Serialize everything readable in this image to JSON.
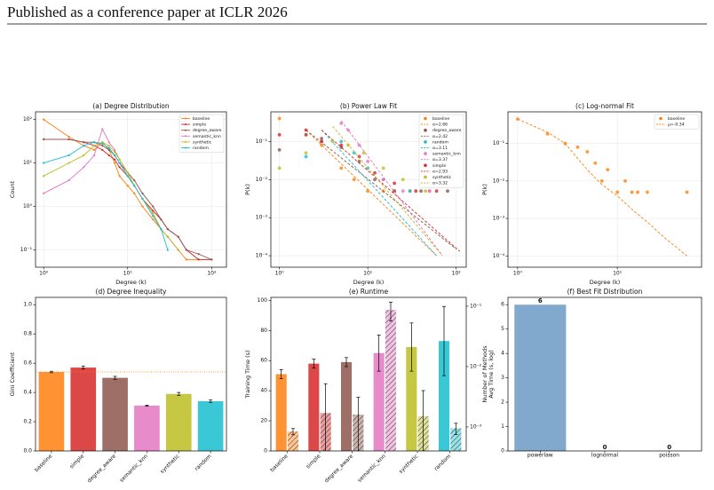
{
  "header": {
    "title": "Published as a conference paper at ICLR 2026"
  },
  "chart_data": [
    {
      "type": "line",
      "title": "(a) Degree Distribution",
      "xlabel": "Degree (k)",
      "ylabel": "Count",
      "xscale": "log",
      "yscale": "log",
      "xlim": [
        0.8,
        150
      ],
      "ylim": [
        0.04,
        150
      ],
      "xticks": [
        {
          "value": 1,
          "label": "10⁰"
        },
        {
          "value": 10,
          "label": "10¹"
        },
        {
          "value": 100,
          "label": "10²"
        }
      ],
      "yticks": [
        {
          "value": 0.1,
          "label": "10⁻¹"
        },
        {
          "value": 1,
          "label": "10⁰"
        },
        {
          "value": 10,
          "label": "10¹"
        },
        {
          "value": 100,
          "label": "10²"
        }
      ],
      "grid": true,
      "legend": "upper right",
      "series": [
        {
          "name": "baseline",
          "color": "#ff7f0e",
          "x": [
            1,
            2,
            3,
            4,
            5,
            6,
            7,
            8,
            10,
            12,
            15,
            20,
            25,
            30,
            40,
            50,
            70
          ],
          "values": [
            100,
            40,
            25,
            20,
            30,
            20,
            10,
            5,
            3,
            2,
            1,
            0.5,
            0.3,
            0.2,
            0.1,
            0.06,
            0.06
          ]
        },
        {
          "name": "simple",
          "color": "#d62728",
          "x": [
            1,
            2,
            3,
            4,
            5,
            6,
            7,
            8,
            10,
            12,
            15,
            20,
            25,
            30,
            40,
            50,
            70,
            100
          ],
          "values": [
            35,
            35,
            30,
            25,
            20,
            15,
            12,
            8,
            5,
            3,
            1.5,
            0.8,
            0.5,
            0.3,
            0.2,
            0.1,
            0.06,
            0.06
          ]
        },
        {
          "name": "degree_aware",
          "color": "#8c564b",
          "x": [
            1,
            2,
            3,
            4,
            5,
            6,
            7,
            8,
            10,
            12,
            15,
            20,
            25,
            30,
            40,
            50,
            70,
            100
          ],
          "values": [
            35,
            35,
            30,
            30,
            25,
            20,
            15,
            10,
            6,
            4,
            2,
            1,
            0.5,
            0.3,
            0.2,
            0.1,
            0.08,
            0.06
          ]
        },
        {
          "name": "semantic_knn",
          "color": "#e377c2",
          "x": [
            1,
            2,
            3,
            4,
            5,
            6,
            7,
            8,
            10,
            12,
            15,
            20,
            25,
            30,
            40
          ],
          "values": [
            2,
            4,
            8,
            15,
            60,
            30,
            20,
            12,
            6,
            3,
            1.5,
            0.7,
            0.3,
            0.2,
            0.1
          ]
        },
        {
          "name": "synthetic",
          "color": "#bcbd22",
          "x": [
            1,
            2,
            3,
            4,
            5,
            6,
            7,
            8,
            10,
            12,
            15,
            20,
            25,
            30,
            40
          ],
          "values": [
            5,
            10,
            15,
            25,
            30,
            25,
            18,
            12,
            6,
            3,
            1.5,
            0.7,
            0.3,
            0.2,
            0.1
          ]
        },
        {
          "name": "random",
          "color": "#17becf",
          "x": [
            1,
            2,
            3,
            4,
            5,
            6,
            7,
            8,
            10,
            12,
            15,
            20,
            25,
            30
          ],
          "values": [
            10,
            15,
            25,
            30,
            28,
            22,
            15,
            10,
            5,
            3,
            1.5,
            0.6,
            0.3,
            0.1
          ]
        }
      ]
    },
    {
      "type": "scatter",
      "title": "(b) Power Law Fit",
      "xlabel": "Degree (k)",
      "ylabel": "P(k)",
      "xscale": "log",
      "yscale": "log",
      "xlim": [
        0.8,
        130
      ],
      "ylim": [
        5e-05,
        0.6
      ],
      "xticks": [
        {
          "value": 1,
          "label": "10⁰"
        },
        {
          "value": 10,
          "label": "10¹"
        },
        {
          "value": 100,
          "label": "10²"
        }
      ],
      "yticks": [
        {
          "value": 0.0001,
          "label": "10⁻⁴"
        },
        {
          "value": 0.001,
          "label": "10⁻³"
        },
        {
          "value": 0.01,
          "label": "10⁻²"
        },
        {
          "value": 0.1,
          "label": "10⁻¹"
        }
      ],
      "grid": true,
      "legend": "upper right",
      "series": [
        {
          "name": "baseline",
          "color": "#ff7f0e",
          "style": "points",
          "x": [
            1,
            2,
            3,
            5,
            7,
            10,
            15,
            20,
            30,
            50
          ],
          "values": [
            0.4,
            0.15,
            0.08,
            0.02,
            0.01,
            0.005,
            0.005,
            0.005,
            0.005,
            0.005
          ]
        },
        {
          "name": "α=2.66",
          "color": "#ff7f0e",
          "style": "dashed",
          "x": [
            2,
            60
          ],
          "values": [
            0.2,
            0.0001
          ]
        },
        {
          "name": "degree_aware",
          "color": "#8c564b",
          "style": "points",
          "x": [
            1,
            2,
            3,
            5,
            8,
            12,
            20,
            40,
            80
          ],
          "values": [
            0.06,
            0.15,
            0.12,
            0.07,
            0.03,
            0.01,
            0.005,
            0.005,
            0.005
          ]
        },
        {
          "name": "α=2.42",
          "color": "#8c564b",
          "style": "dashed",
          "x": [
            2,
            100
          ],
          "values": [
            0.2,
            0.00015
          ]
        },
        {
          "name": "random",
          "color": "#17becf",
          "style": "points",
          "x": [
            2,
            3,
            5,
            7,
            10,
            15,
            30
          ],
          "values": [
            0.04,
            0.1,
            0.1,
            0.05,
            0.02,
            0.01,
            0.005
          ]
        },
        {
          "name": "α=3.11",
          "color": "#17becf",
          "style": "dashed",
          "x": [
            3,
            60
          ],
          "values": [
            0.2,
            0.0001
          ]
        },
        {
          "name": "semantic_knn",
          "color": "#e377c2",
          "style": "points",
          "x": [
            5,
            6,
            8,
            10,
            15,
            25,
            50
          ],
          "values": [
            0.3,
            0.2,
            0.08,
            0.03,
            0.01,
            0.005,
            0.005
          ]
        },
        {
          "name": "α=3.37",
          "color": "#e377c2",
          "style": "dashed",
          "x": [
            5,
            70
          ],
          "values": [
            0.35,
            0.0001
          ]
        },
        {
          "name": "simple",
          "color": "#d62728",
          "style": "points",
          "x": [
            1,
            2,
            3,
            5,
            8,
            12,
            20,
            35,
            60
          ],
          "values": [
            0.15,
            0.2,
            0.1,
            0.08,
            0.04,
            0.015,
            0.008,
            0.005,
            0.005
          ]
        },
        {
          "name": "α=2.93",
          "color": "#d62728",
          "style": "dashed",
          "x": [
            3,
            110
          ],
          "values": [
            0.2,
            0.00013
          ]
        },
        {
          "name": "synthetic",
          "color": "#bcbd22",
          "style": "points",
          "x": [
            1,
            2,
            4,
            6,
            9,
            15,
            25,
            45
          ],
          "values": [
            0.02,
            0.05,
            0.1,
            0.08,
            0.05,
            0.02,
            0.01,
            0.005
          ]
        },
        {
          "name": "α=3.32",
          "color": "#bcbd22",
          "style": "dashed",
          "x": [
            4,
            70
          ],
          "values": [
            0.25,
            0.0001
          ]
        }
      ]
    },
    {
      "type": "scatter",
      "title": "(c) Log-normal Fit",
      "xlabel": "Degree (k)",
      "ylabel": "P(k)",
      "xscale": "log",
      "yscale": "log",
      "xlim": [
        0.8,
        70
      ],
      "ylim": [
        5e-05,
        0.7
      ],
      "xticks": [
        {
          "value": 1,
          "label": "10⁰"
        },
        {
          "value": 10,
          "label": "10¹"
        }
      ],
      "yticks": [
        {
          "value": 0.0001,
          "label": "10⁻⁴"
        },
        {
          "value": 0.001,
          "label": "10⁻³"
        },
        {
          "value": 0.01,
          "label": "10⁻²"
        },
        {
          "value": 0.1,
          "label": "10⁻¹"
        }
      ],
      "grid": true,
      "legend": "upper right",
      "series": [
        {
          "name": "baseline",
          "color": "#ff7f0e",
          "style": "points",
          "x": [
            1,
            2,
            3,
            4,
            5,
            6,
            7,
            8,
            10,
            12,
            14,
            16,
            20,
            50
          ],
          "values": [
            0.45,
            0.18,
            0.1,
            0.08,
            0.06,
            0.03,
            0.01,
            0.02,
            0.005,
            0.01,
            0.005,
            0.005,
            0.005,
            0.005
          ]
        },
        {
          "name": "μ=-0.34",
          "color": "#ff7f0e",
          "style": "dashed",
          "x": [
            1,
            2,
            3,
            4,
            5,
            7,
            10,
            15,
            20,
            30,
            50
          ],
          "values": [
            0.45,
            0.2,
            0.1,
            0.04,
            0.02,
            0.008,
            0.004,
            0.0015,
            0.0008,
            0.0003,
            0.0001
          ]
        }
      ]
    },
    {
      "type": "bar",
      "title": "(d) Degree Inequality",
      "ylabel": "Gini Coefficient",
      "categories": [
        "baseline",
        "simple",
        "degree_aware",
        "semantic_knn",
        "synthetic",
        "random"
      ],
      "values": [
        0.54,
        0.57,
        0.5,
        0.31,
        0.39,
        0.34
      ],
      "errors": [
        0.005,
        0.01,
        0.01,
        0.003,
        0.01,
        0.008
      ],
      "colors": [
        "#ff7f0e",
        "#d62728",
        "#8c564b",
        "#e377c2",
        "#bcbd22",
        "#17becf"
      ],
      "reference_line": 0.54,
      "reference_color": "#ff7f0e",
      "ylim": [
        0,
        1.05
      ],
      "yticks": [
        {
          "value": 0,
          "label": "0.0"
        },
        0.2,
        0.4,
        0.6,
        0.8,
        {
          "value": 1,
          "label": "1.0"
        }
      ],
      "grid": false,
      "xtick_rotation": 45
    },
    {
      "type": "bar",
      "title": "(e) Runtime",
      "ylabel": "Training Time (s)",
      "y2label": "Avg Time (s, log)",
      "categories": [
        "baseline",
        "simple",
        "degree_aware",
        "semantic_knn",
        "synthetic",
        "random"
      ],
      "colors": [
        "#ff7f0e",
        "#d62728",
        "#8c564b",
        "#e377c2",
        "#bcbd22",
        "#17becf"
      ],
      "series": [
        {
          "values": [
            51,
            58,
            59,
            65,
            69,
            73
          ],
          "errors": [
            3,
            3,
            3,
            12,
            16,
            23
          ]
        },
        {
          "axis": "y2",
          "hatch": true,
          "values": [
            0.00084,
            0.0017,
            0.0016,
            0.087,
            0.0015,
            0.00095
          ],
          "errors": [
            0.0001,
            0.0035,
            0.0015,
            0.03,
            0.0025,
            0.0002
          ]
        }
      ],
      "ylim": [
        0,
        102
      ],
      "yticks": [
        0,
        20,
        40,
        60,
        80,
        100
      ],
      "y2scale": "log",
      "y2lim": [
        0.0004,
        0.14
      ],
      "y2ticks": [
        {
          "value": 0.001,
          "label": "10⁻³"
        },
        {
          "value": 0.01,
          "label": "10⁻²"
        },
        {
          "value": 0.1,
          "label": "10⁻¹"
        }
      ],
      "grid": false,
      "xtick_rotation": 45
    },
    {
      "type": "bar",
      "title": "(f) Best Fit Distribution",
      "ylabel": "Number of Methods",
      "categories": [
        "powerlaw",
        "lognormal",
        "poisson"
      ],
      "values": [
        6,
        0,
        0
      ],
      "color": "#6a9ac4",
      "show_value_labels": true,
      "ylim": [
        0,
        6.3
      ],
      "yticks": [
        0,
        1,
        2,
        3,
        4,
        5,
        6
      ],
      "grid": false
    }
  ]
}
